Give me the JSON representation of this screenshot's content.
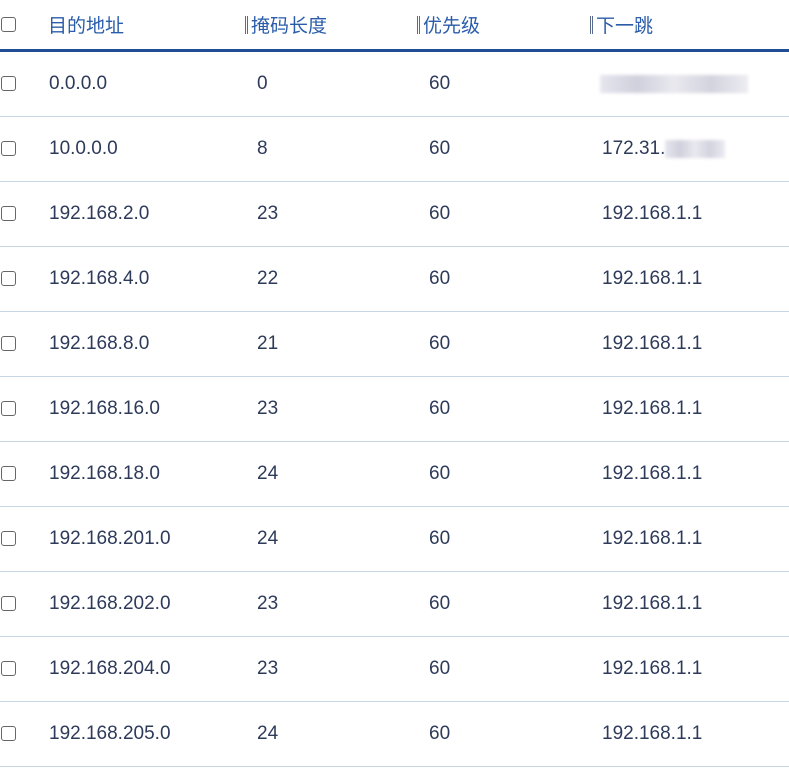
{
  "columns": [
    "目的地址",
    "掩码长度",
    "优先级",
    "下一跳"
  ],
  "rows": [
    {
      "dest": "0.0.0.0",
      "mask": "0",
      "priority": "60",
      "next_hop": "",
      "next_hop_redacted": true
    },
    {
      "dest": "10.0.0.0",
      "mask": "8",
      "priority": "60",
      "next_hop": "172.31.",
      "next_hop_redacted": true
    },
    {
      "dest": "192.168.2.0",
      "mask": "23",
      "priority": "60",
      "next_hop": "192.168.1.1"
    },
    {
      "dest": "192.168.4.0",
      "mask": "22",
      "priority": "60",
      "next_hop": "192.168.1.1"
    },
    {
      "dest": "192.168.8.0",
      "mask": "21",
      "priority": "60",
      "next_hop": "192.168.1.1"
    },
    {
      "dest": "192.168.16.0",
      "mask": "23",
      "priority": "60",
      "next_hop": "192.168.1.1"
    },
    {
      "dest": "192.168.18.0",
      "mask": "24",
      "priority": "60",
      "next_hop": "192.168.1.1"
    },
    {
      "dest": "192.168.201.0",
      "mask": "24",
      "priority": "60",
      "next_hop": "192.168.1.1"
    },
    {
      "dest": "192.168.202.0",
      "mask": "23",
      "priority": "60",
      "next_hop": "192.168.1.1"
    },
    {
      "dest": "192.168.204.0",
      "mask": "23",
      "priority": "60",
      "next_hop": "192.168.1.1"
    },
    {
      "dest": "192.168.205.0",
      "mask": "24",
      "priority": "60",
      "next_hop": "192.168.1.1"
    }
  ]
}
